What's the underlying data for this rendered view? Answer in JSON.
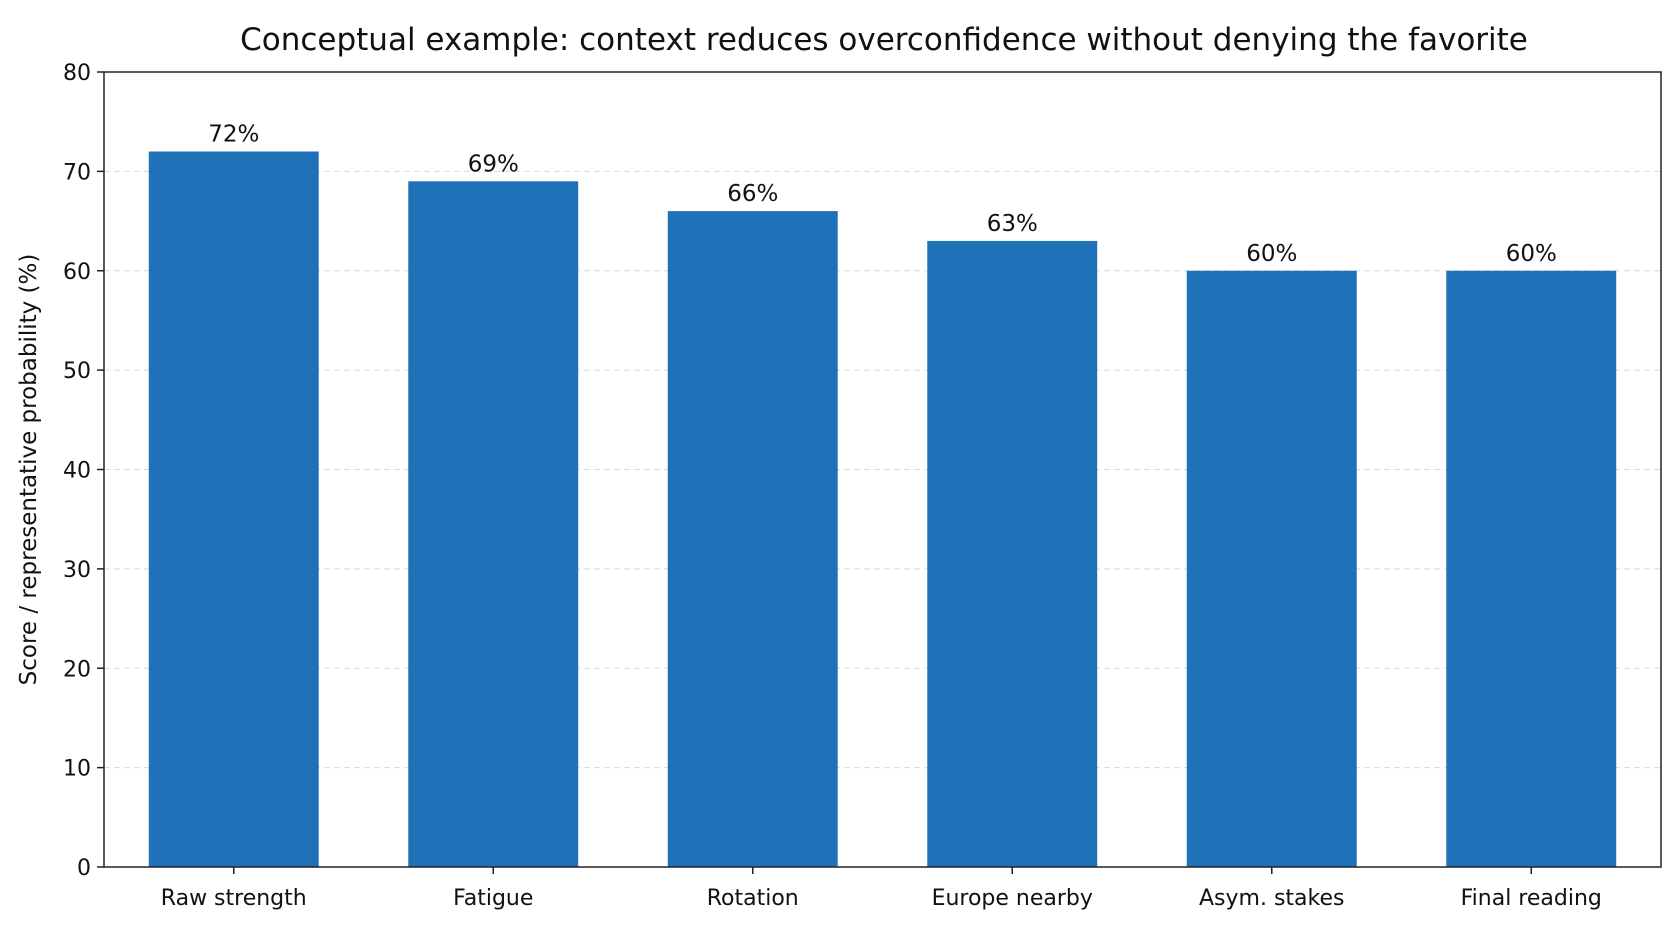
{
  "chart_data": {
    "type": "bar",
    "title": "Conceptual example: context reduces overconfidence without denying the favorite",
    "xlabel": "",
    "ylabel": "Score / representative probability (%)",
    "ylim": [
      0,
      80
    ],
    "yticks": [
      0,
      10,
      20,
      30,
      40,
      50,
      60,
      70,
      80
    ],
    "grid": true,
    "categories": [
      "Raw strength",
      "Fatigue",
      "Rotation",
      "Europe nearby",
      "Asym. stakes",
      "Final reading"
    ],
    "values": [
      72,
      69,
      66,
      63,
      60,
      60
    ],
    "data_labels": [
      "72%",
      "69%",
      "66%",
      "63%",
      "60%",
      "60%"
    ],
    "bar_color": "#1f72b8"
  }
}
